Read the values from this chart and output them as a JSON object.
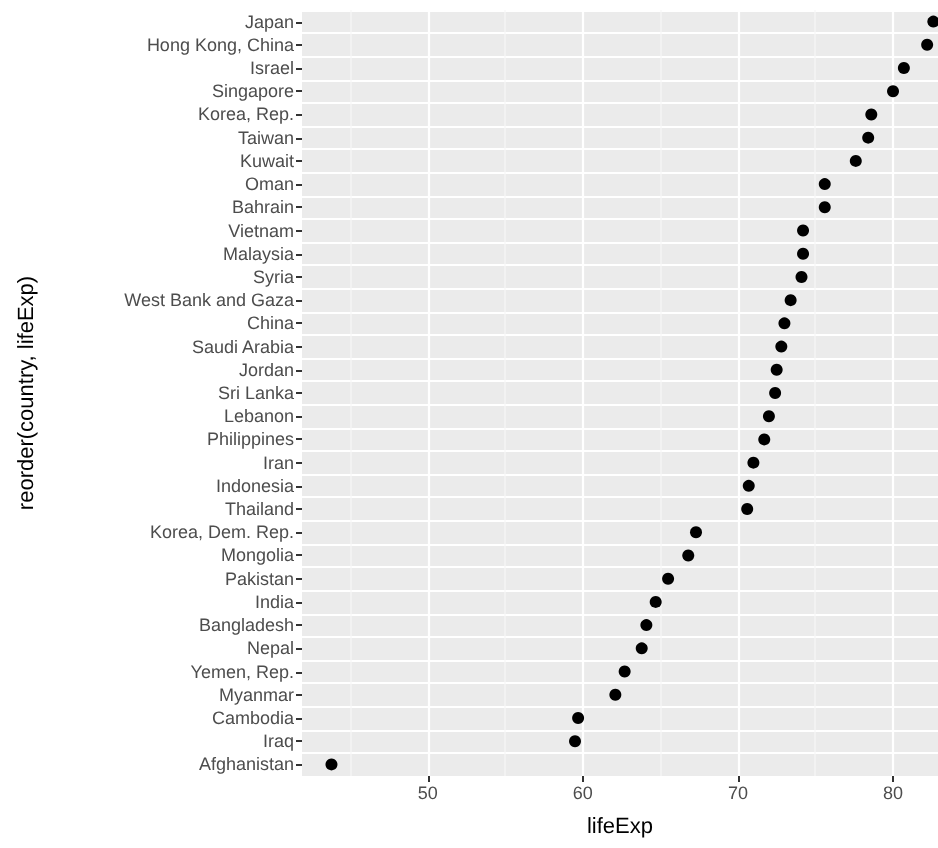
{
  "chart_data": {
    "type": "scatter",
    "xlabel": "lifeExp",
    "ylabel": "reorder(country, lifeExp)",
    "categories": [
      "Japan",
      "Hong Kong, China",
      "Israel",
      "Singapore",
      "Korea, Rep.",
      "Taiwan",
      "Kuwait",
      "Oman",
      "Bahrain",
      "Vietnam",
      "Malaysia",
      "Syria",
      "West Bank and Gaza",
      "China",
      "Saudi Arabia",
      "Jordan",
      "Sri Lanka",
      "Lebanon",
      "Philippines",
      "Iran",
      "Indonesia",
      "Thailand",
      "Korea, Dem. Rep.",
      "Mongolia",
      "Pakistan",
      "India",
      "Bangladesh",
      "Nepal",
      "Yemen, Rep.",
      "Myanmar",
      "Cambodia",
      "Iraq",
      "Afghanistan"
    ],
    "series": [
      {
        "color": "#000000",
        "values": [
          82.6,
          82.2,
          80.7,
          80.0,
          78.6,
          78.4,
          77.6,
          75.6,
          75.6,
          74.2,
          74.2,
          74.1,
          73.4,
          73.0,
          72.8,
          72.5,
          72.4,
          72.0,
          71.7,
          71.0,
          70.7,
          70.6,
          67.3,
          66.8,
          65.5,
          64.7,
          64.1,
          63.8,
          62.7,
          62.1,
          59.7,
          59.5,
          43.8
        ]
      }
    ],
    "orientation": "horizontal",
    "xlim": [
      41.9,
      82.9
    ],
    "xticks": [
      50,
      60,
      70,
      80
    ],
    "grid": true,
    "marker": "circle"
  }
}
